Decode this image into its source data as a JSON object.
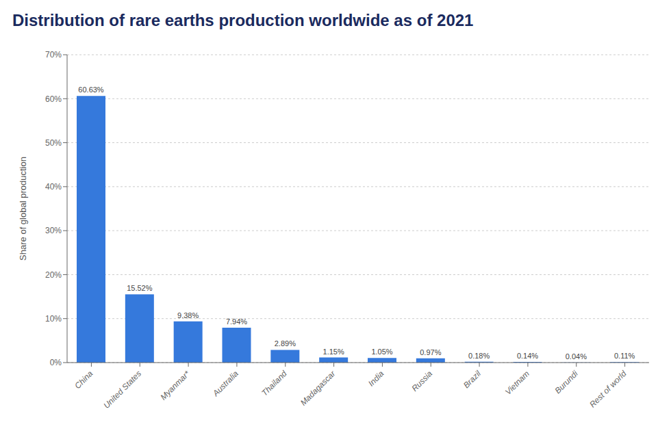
{
  "chart_data": {
    "type": "bar",
    "title": "Distribution of rare earths production worldwide as of 2021",
    "categories": [
      "China",
      "United States",
      "Myanmar*",
      "Australia",
      "Thailand",
      "Madagascar",
      "India",
      "Russia",
      "Brazil",
      "Vietnam",
      "Burundi",
      "Rest of world"
    ],
    "values": [
      60.63,
      15.52,
      9.38,
      7.94,
      2.89,
      1.15,
      1.05,
      0.97,
      0.18,
      0.14,
      0.04,
      0.11
    ],
    "value_labels": [
      "60.63%",
      "15.52%",
      "9.38%",
      "7.94%",
      "2.89%",
      "1.15%",
      "1.05%",
      "0.97%",
      "0.18%",
      "0.14%",
      "0.04%",
      "0.11%"
    ],
    "color": "#3579dc",
    "ylabel": "Share of global production",
    "ylim": [
      0,
      70
    ],
    "yticks": [
      {
        "value": 0,
        "label": "0%"
      },
      {
        "value": 10,
        "label": "10%"
      },
      {
        "value": 20,
        "label": "20%"
      },
      {
        "value": 30,
        "label": "30%"
      },
      {
        "value": 40,
        "label": "40%"
      },
      {
        "value": 50,
        "label": "50%"
      },
      {
        "value": 60,
        "label": "60%"
      },
      {
        "value": 70,
        "label": "70%"
      }
    ],
    "grid": true,
    "data_labels": true
  }
}
